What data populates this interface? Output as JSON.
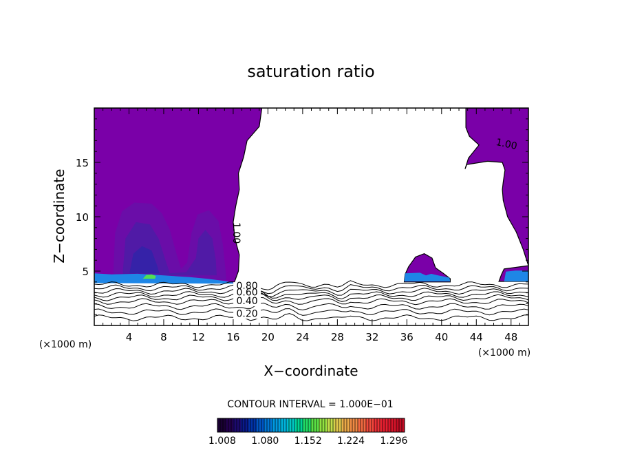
{
  "chart_data": {
    "type": "heatmap",
    "title": "saturation ratio",
    "xlabel": "X−coordinate",
    "ylabel": "Z−coordinate",
    "x_unit": "(×1000 m)",
    "z_unit": "(×1000 m)",
    "xlim": [
      0,
      50
    ],
    "ylim": [
      0,
      20
    ],
    "x_ticks": [
      4,
      8,
      12,
      16,
      20,
      24,
      28,
      32,
      36,
      40,
      44,
      48
    ],
    "y_ticks": [
      5,
      10,
      15
    ],
    "contour_interval_text": "CONTOUR INTERVAL = 1.000E−01",
    "contour_labels": [
      {
        "text": "1.00",
        "x": 47.4,
        "z": 16.4
      },
      {
        "text": "1.00",
        "x": 16.0,
        "z": 8.5
      },
      {
        "text": "0.80",
        "x": 17.6,
        "z": 3.35
      },
      {
        "text": "0.60",
        "x": 17.6,
        "z": 2.75
      },
      {
        "text": "0.40",
        "x": 17.6,
        "z": 1.95
      },
      {
        "text": "0.20",
        "x": 17.6,
        "z": 0.8
      }
    ],
    "regions": [
      {
        "name": "supersaturated-left",
        "value": 1.0,
        "polygon": [
          [
            0,
            20
          ],
          [
            19.3,
            20
          ],
          [
            19.0,
            18.3
          ],
          [
            17.6,
            17.0
          ],
          [
            17.2,
            15.5
          ],
          [
            16.6,
            14.0
          ],
          [
            16.7,
            12.5
          ],
          [
            16.3,
            11.0
          ],
          [
            16.0,
            9.5
          ],
          [
            16.2,
            8.0
          ],
          [
            16.7,
            6.5
          ],
          [
            16.6,
            5.0
          ],
          [
            16.1,
            3.9
          ],
          [
            12,
            4.0
          ],
          [
            6,
            4.3
          ],
          [
            0,
            4.3
          ]
        ]
      },
      {
        "name": "supersaturated-right",
        "value": 1.0,
        "polygon": [
          [
            42.8,
            20
          ],
          [
            50,
            20
          ],
          [
            50,
            5.5
          ],
          [
            49.4,
            7.0
          ],
          [
            48.6,
            8.6
          ],
          [
            47.6,
            10.0
          ],
          [
            47.1,
            11.5
          ],
          [
            47.0,
            12.5
          ],
          [
            47.1,
            13.2
          ],
          [
            47.3,
            14.3
          ],
          [
            47.0,
            15.0
          ],
          [
            45.3,
            15.1
          ],
          [
            42.9,
            14.8
          ],
          [
            42.7,
            14.4
          ],
          [
            43.1,
            15.4
          ],
          [
            44.3,
            16.6
          ],
          [
            43.2,
            17.4
          ],
          [
            42.8,
            18.2
          ]
        ]
      },
      {
        "name": "supersaturated-lower-right",
        "value": 1.0,
        "polygon": [
          [
            50,
            5.5
          ],
          [
            47.2,
            5.2
          ],
          [
            46.9,
            4.7
          ],
          [
            46.6,
            4.05
          ],
          [
            50,
            4.05
          ]
        ]
      },
      {
        "name": "cloud-bump",
        "value": 1.0,
        "polygon": [
          [
            35.7,
            4.0
          ],
          [
            35.8,
            4.7
          ],
          [
            36.2,
            5.4
          ],
          [
            37.0,
            6.3
          ],
          [
            38.0,
            6.6
          ],
          [
            38.9,
            6.2
          ],
          [
            39.3,
            5.3
          ],
          [
            40.2,
            4.8
          ],
          [
            41.0,
            4.3
          ],
          [
            41.0,
            4.0
          ]
        ]
      },
      {
        "name": "enhanced-plume-1",
        "value": 1.02,
        "polygon": [
          [
            2.2,
            5.0
          ],
          [
            2.4,
            8.5
          ],
          [
            3.2,
            10.5
          ],
          [
            4.6,
            11.3
          ],
          [
            6.6,
            11.2
          ],
          [
            7.8,
            10.3
          ],
          [
            8.7,
            8.8
          ],
          [
            9.5,
            6.5
          ],
          [
            10.0,
            5.2
          ],
          [
            10.7,
            5.8
          ],
          [
            11.2,
            8.5
          ],
          [
            11.9,
            10.2
          ],
          [
            13.2,
            10.6
          ],
          [
            14.3,
            9.6
          ],
          [
            14.8,
            7.5
          ],
          [
            15.1,
            5.2
          ],
          [
            15.2,
            4.2
          ],
          [
            2.2,
            4.5
          ]
        ]
      },
      {
        "name": "enhanced-plume-2",
        "value": 1.04,
        "polygon": [
          [
            3.3,
            5.0
          ],
          [
            3.6,
            8.0
          ],
          [
            4.8,
            9.5
          ],
          [
            6.4,
            9.3
          ],
          [
            7.4,
            8.0
          ],
          [
            8.2,
            6.0
          ],
          [
            8.7,
            4.8
          ],
          [
            10.6,
            4.9
          ],
          [
            11.7,
            6.2
          ],
          [
            12.0,
            8.0
          ],
          [
            12.8,
            8.8
          ],
          [
            13.6,
            8.0
          ],
          [
            14.0,
            6.0
          ],
          [
            14.1,
            4.6
          ],
          [
            3.3,
            4.6
          ]
        ]
      },
      {
        "name": "enhanced-plume-3",
        "value": 1.07,
        "polygon": [
          [
            4.1,
            5.0
          ],
          [
            4.5,
            6.6
          ],
          [
            5.5,
            7.3
          ],
          [
            6.6,
            6.9
          ],
          [
            7.2,
            5.6
          ],
          [
            7.5,
            4.8
          ],
          [
            4.1,
            4.8
          ]
        ]
      },
      {
        "name": "near-surface-band",
        "value": 1.17,
        "polygon": [
          [
            0,
            4.1
          ],
          [
            0,
            4.8
          ],
          [
            2,
            4.7
          ],
          [
            5,
            4.75
          ],
          [
            8,
            4.6
          ],
          [
            11,
            4.45
          ],
          [
            13,
            4.3
          ],
          [
            15,
            4.1
          ],
          [
            16,
            3.95
          ],
          [
            16,
            3.85
          ],
          [
            0,
            3.9
          ]
        ]
      },
      {
        "name": "near-surface-core",
        "value": 1.26,
        "polygon": [
          [
            5.6,
            4.3
          ],
          [
            6.0,
            4.65
          ],
          [
            6.6,
            4.7
          ],
          [
            7.1,
            4.55
          ],
          [
            7.0,
            4.3
          ]
        ]
      },
      {
        "name": "bump-base-band",
        "value": 1.17,
        "polygon": [
          [
            35.7,
            4.05
          ],
          [
            35.8,
            4.8
          ],
          [
            37.5,
            4.85
          ],
          [
            38.2,
            4.6
          ],
          [
            38.8,
            4.75
          ],
          [
            39.6,
            4.6
          ],
          [
            40.9,
            4.4
          ],
          [
            41.0,
            4.05
          ]
        ]
      },
      {
        "name": "right-base-band",
        "value": 1.17,
        "polygon": [
          [
            47.2,
            4.05
          ],
          [
            47.4,
            4.95
          ],
          [
            48.5,
            5.05
          ],
          [
            50,
            5.05
          ],
          [
            50,
            4.05
          ]
        ]
      }
    ],
    "colorbar": {
      "labels": [
        "1.008",
        "1.080",
        "1.152",
        "1.224",
        "1.296"
      ],
      "min": 1.0,
      "max": 1.314,
      "colors": [
        "#1a0033",
        "#22004d",
        "#1c0a6e",
        "#0a1a8c",
        "#0033a8",
        "#0055c4",
        "#0077d6",
        "#0099e0",
        "#00b4dc",
        "#00c8c4",
        "#00d494",
        "#22dc66",
        "#5ae045",
        "#92e240",
        "#c2de4a",
        "#e0c84c",
        "#ecaa48",
        "#f08a44",
        "#f26a40",
        "#f24a3c",
        "#ee3036",
        "#e61e30",
        "#d8142a",
        "#c40c24"
      ]
    }
  }
}
